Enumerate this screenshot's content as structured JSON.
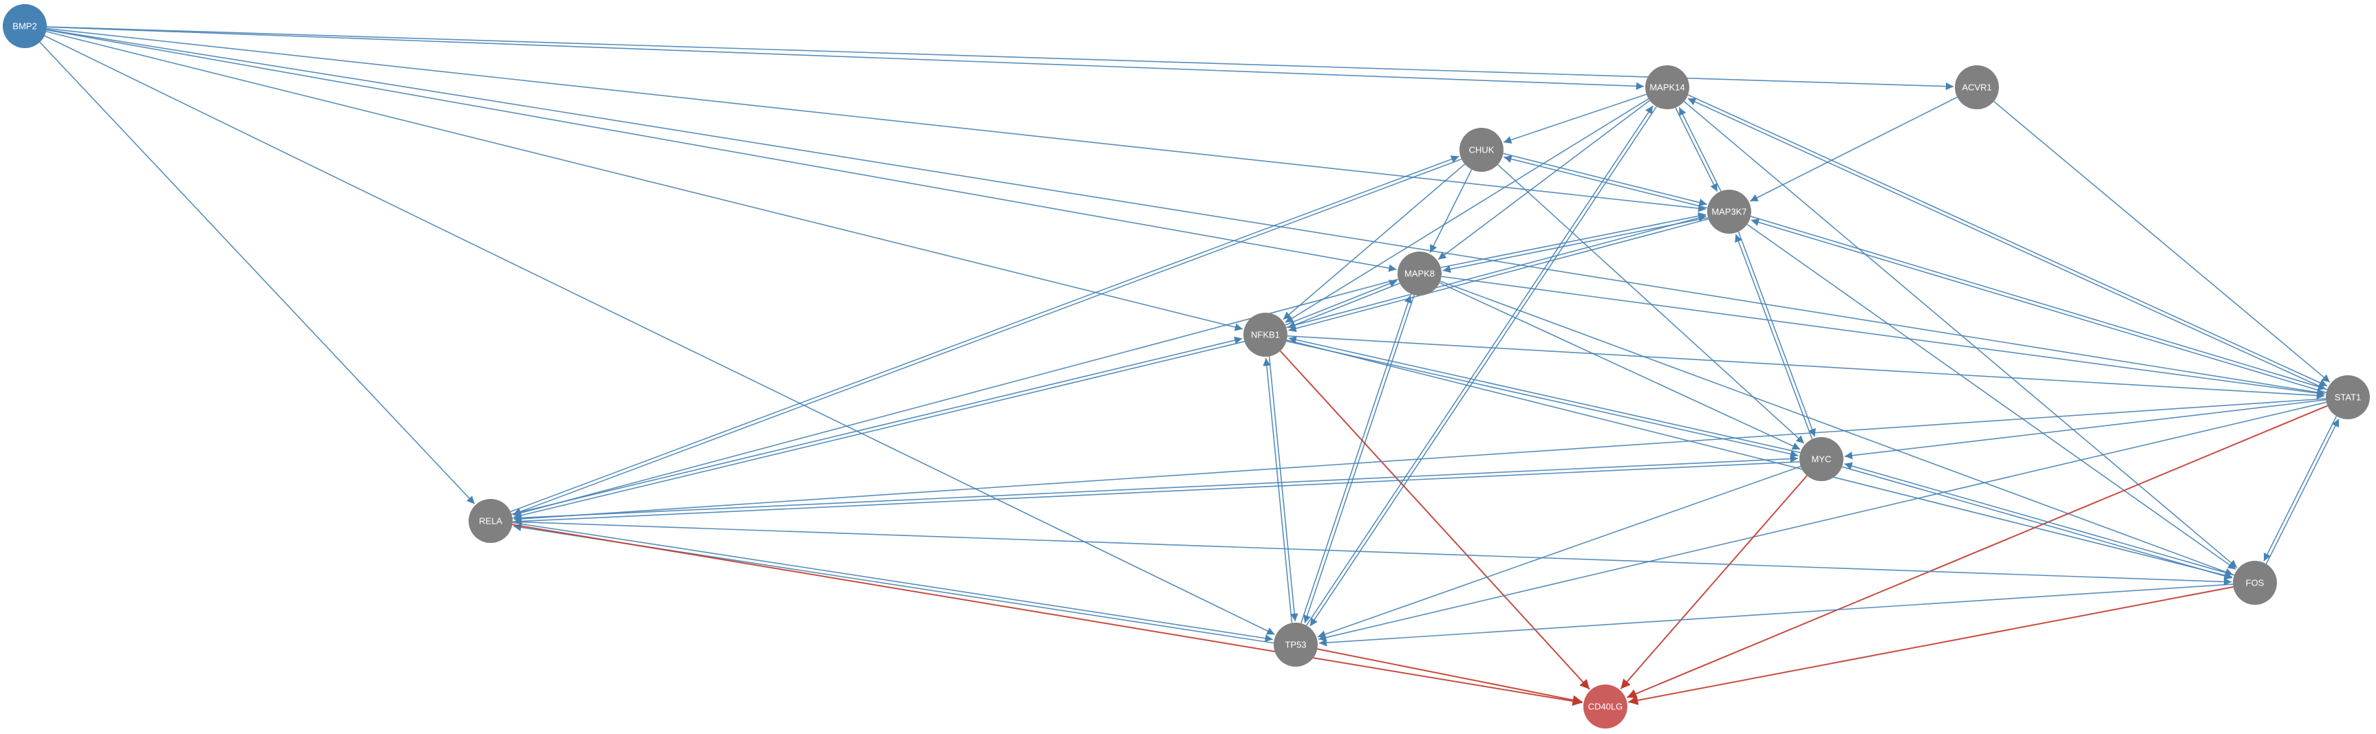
{
  "colors": {
    "background": "#ffffff",
    "node_default": "#808080",
    "node_source": "#4682b4",
    "node_target": "#cd5c5c",
    "edge_activation": "#4682b4",
    "edge_inhibition": "#c0392b"
  },
  "nodes": [
    {
      "id": "BMP2",
      "label": "BMP2",
      "role": "source"
    },
    {
      "id": "MAPK14",
      "label": "MAPK14",
      "role": "default"
    },
    {
      "id": "ACVR1",
      "label": "ACVR1",
      "role": "default"
    },
    {
      "id": "CHUK",
      "label": "CHUK",
      "role": "default"
    },
    {
      "id": "MAP3K7",
      "label": "MAP3K7",
      "role": "default"
    },
    {
      "id": "MAPK8",
      "label": "MAPK8",
      "role": "default"
    },
    {
      "id": "NFKB1",
      "label": "NFKB1",
      "role": "default"
    },
    {
      "id": "STAT1",
      "label": "STAT1",
      "role": "default"
    },
    {
      "id": "MYC",
      "label": "MYC",
      "role": "default"
    },
    {
      "id": "RELA",
      "label": "RELA",
      "role": "default"
    },
    {
      "id": "FOS",
      "label": "FOS",
      "role": "default"
    },
    {
      "id": "TP53",
      "label": "TP53",
      "role": "default"
    },
    {
      "id": "CD40LG",
      "label": "CD40LG",
      "role": "target"
    }
  ],
  "edges": [
    {
      "source": "BMP2",
      "target": "MAPK14",
      "type": "activation"
    },
    {
      "source": "BMP2",
      "target": "ACVR1",
      "type": "activation"
    },
    {
      "source": "BMP2",
      "target": "MAP3K7",
      "type": "activation"
    },
    {
      "source": "BMP2",
      "target": "MAPK8",
      "type": "activation"
    },
    {
      "source": "BMP2",
      "target": "NFKB1",
      "type": "activation"
    },
    {
      "source": "BMP2",
      "target": "STAT1",
      "type": "activation"
    },
    {
      "source": "BMP2",
      "target": "RELA",
      "type": "activation"
    },
    {
      "source": "BMP2",
      "target": "TP53",
      "type": "activation"
    },
    {
      "source": "ACVR1",
      "target": "MAP3K7",
      "type": "activation"
    },
    {
      "source": "ACVR1",
      "target": "STAT1",
      "type": "activation"
    },
    {
      "source": "MAPK14",
      "target": "CHUK",
      "type": "activation"
    },
    {
      "source": "MAPK14",
      "target": "MAP3K7",
      "type": "activation"
    },
    {
      "source": "MAP3K7",
      "target": "MAPK14",
      "type": "activation"
    },
    {
      "source": "MAPK14",
      "target": "MAPK8",
      "type": "activation"
    },
    {
      "source": "MAPK14",
      "target": "NFKB1",
      "type": "activation"
    },
    {
      "source": "MAPK14",
      "target": "STAT1",
      "type": "activation"
    },
    {
      "source": "STAT1",
      "target": "MAPK14",
      "type": "activation"
    },
    {
      "source": "MAPK14",
      "target": "FOS",
      "type": "activation"
    },
    {
      "source": "MAPK14",
      "target": "TP53",
      "type": "activation"
    },
    {
      "source": "TP53",
      "target": "MAPK14",
      "type": "activation"
    },
    {
      "source": "CHUK",
      "target": "MAP3K7",
      "type": "activation"
    },
    {
      "source": "MAP3K7",
      "target": "CHUK",
      "type": "activation"
    },
    {
      "source": "CHUK",
      "target": "MAPK8",
      "type": "activation"
    },
    {
      "source": "CHUK",
      "target": "NFKB1",
      "type": "activation"
    },
    {
      "source": "CHUK",
      "target": "RELA",
      "type": "activation"
    },
    {
      "source": "RELA",
      "target": "CHUK",
      "type": "activation"
    },
    {
      "source": "CHUK",
      "target": "MYC",
      "type": "activation"
    },
    {
      "source": "MAP3K7",
      "target": "MAPK8",
      "type": "activation"
    },
    {
      "source": "MAPK8",
      "target": "MAP3K7",
      "type": "activation"
    },
    {
      "source": "MAP3K7",
      "target": "NFKB1",
      "type": "activation"
    },
    {
      "source": "NFKB1",
      "target": "MAP3K7",
      "type": "activation"
    },
    {
      "source": "MAP3K7",
      "target": "STAT1",
      "type": "activation"
    },
    {
      "source": "STAT1",
      "target": "MAP3K7",
      "type": "activation"
    },
    {
      "source": "MAP3K7",
      "target": "MYC",
      "type": "activation"
    },
    {
      "source": "MYC",
      "target": "MAP3K7",
      "type": "activation"
    },
    {
      "source": "MAP3K7",
      "target": "FOS",
      "type": "activation"
    },
    {
      "source": "MAPK8",
      "target": "NFKB1",
      "type": "activation"
    },
    {
      "source": "NFKB1",
      "target": "MAPK8",
      "type": "activation"
    },
    {
      "source": "MAPK8",
      "target": "STAT1",
      "type": "activation"
    },
    {
      "source": "MAPK8",
      "target": "MYC",
      "type": "activation"
    },
    {
      "source": "MAPK8",
      "target": "FOS",
      "type": "activation"
    },
    {
      "source": "MAPK8",
      "target": "TP53",
      "type": "activation"
    },
    {
      "source": "TP53",
      "target": "MAPK8",
      "type": "activation"
    },
    {
      "source": "MAPK8",
      "target": "RELA",
      "type": "activation"
    },
    {
      "source": "NFKB1",
      "target": "RELA",
      "type": "activation"
    },
    {
      "source": "RELA",
      "target": "NFKB1",
      "type": "activation"
    },
    {
      "source": "NFKB1",
      "target": "MYC",
      "type": "activation"
    },
    {
      "source": "MYC",
      "target": "NFKB1",
      "type": "activation"
    },
    {
      "source": "NFKB1",
      "target": "STAT1",
      "type": "activation"
    },
    {
      "source": "NFKB1",
      "target": "FOS",
      "type": "activation"
    },
    {
      "source": "NFKB1",
      "target": "TP53",
      "type": "activation"
    },
    {
      "source": "TP53",
      "target": "NFKB1",
      "type": "activation"
    },
    {
      "source": "NFKB1",
      "target": "CD40LG",
      "type": "inhibition"
    },
    {
      "source": "STAT1",
      "target": "MYC",
      "type": "activation"
    },
    {
      "source": "STAT1",
      "target": "RELA",
      "type": "activation"
    },
    {
      "source": "STAT1",
      "target": "FOS",
      "type": "activation"
    },
    {
      "source": "FOS",
      "target": "STAT1",
      "type": "activation"
    },
    {
      "source": "STAT1",
      "target": "TP53",
      "type": "activation"
    },
    {
      "source": "STAT1",
      "target": "CD40LG",
      "type": "inhibition"
    },
    {
      "source": "MYC",
      "target": "RELA",
      "type": "activation"
    },
    {
      "source": "RELA",
      "target": "MYC",
      "type": "activation"
    },
    {
      "source": "MYC",
      "target": "FOS",
      "type": "activation"
    },
    {
      "source": "FOS",
      "target": "MYC",
      "type": "activation"
    },
    {
      "source": "MYC",
      "target": "TP53",
      "type": "activation"
    },
    {
      "source": "MYC",
      "target": "CD40LG",
      "type": "inhibition"
    },
    {
      "source": "RELA",
      "target": "FOS",
      "type": "activation"
    },
    {
      "source": "RELA",
      "target": "TP53",
      "type": "activation"
    },
    {
      "source": "TP53",
      "target": "RELA",
      "type": "activation"
    },
    {
      "source": "RELA",
      "target": "CD40LG",
      "type": "inhibition"
    },
    {
      "source": "FOS",
      "target": "TP53",
      "type": "activation"
    },
    {
      "source": "FOS",
      "target": "CD40LG",
      "type": "inhibition"
    },
    {
      "source": "TP53",
      "target": "CD40LG",
      "type": "inhibition"
    }
  ]
}
